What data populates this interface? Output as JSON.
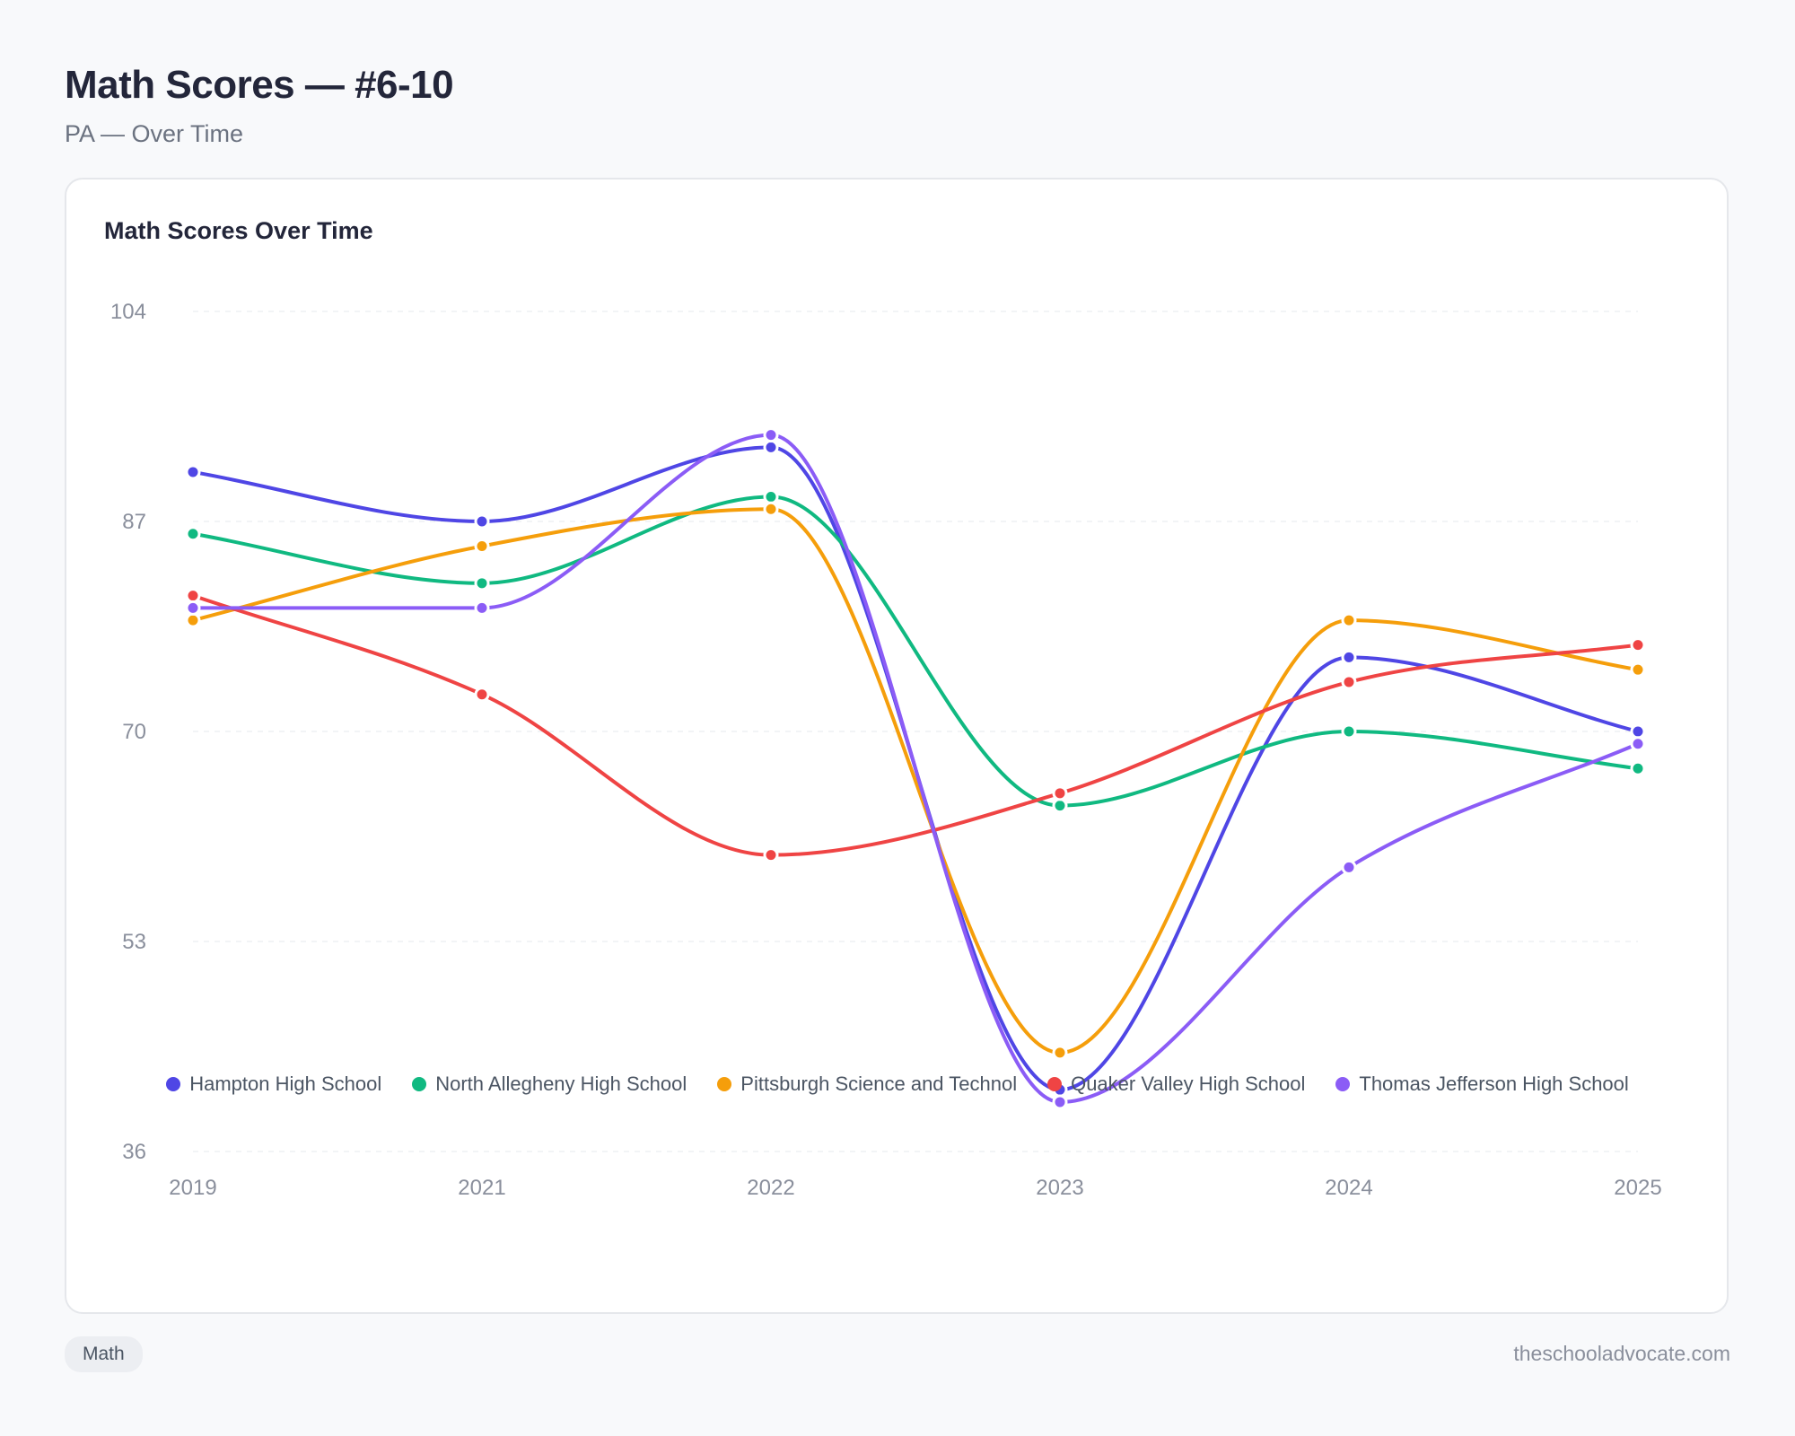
{
  "header": {
    "title": "Math Scores — #6-10",
    "subtitle": "PA — Over Time"
  },
  "card": {
    "title": "Math Scores Over Time"
  },
  "footer": {
    "tag": "Math",
    "site": "theschooladvocate.com"
  },
  "chart_data": {
    "type": "line",
    "title": "Math Scores Over Time",
    "xlabel": "",
    "ylabel": "",
    "categories": [
      "2019",
      "2021",
      "2022",
      "2023",
      "2024",
      "2025"
    ],
    "ylim": [
      36,
      104
    ],
    "yticks": [
      36,
      53,
      70,
      87,
      104
    ],
    "grid": "horizontal dashed",
    "legend": "bottom",
    "smooth": true,
    "series": [
      {
        "name": "Hampton High School",
        "color": "#4f46e5",
        "values": [
          91,
          87,
          93,
          41,
          76,
          70
        ]
      },
      {
        "name": "North Allegheny High School",
        "color": "#10b981",
        "values": [
          86,
          82,
          89,
          64,
          70,
          67
        ]
      },
      {
        "name": "Pittsburgh Science and Technol",
        "color": "#f59e0b",
        "values": [
          79,
          85,
          88,
          44,
          79,
          75
        ]
      },
      {
        "name": "Quaker Valley High School",
        "color": "#ef4444",
        "values": [
          81,
          73,
          60,
          65,
          74,
          77
        ]
      },
      {
        "name": "Thomas Jefferson High School",
        "color": "#8b5cf6",
        "values": [
          80,
          80,
          94,
          40,
          59,
          69
        ]
      }
    ]
  }
}
